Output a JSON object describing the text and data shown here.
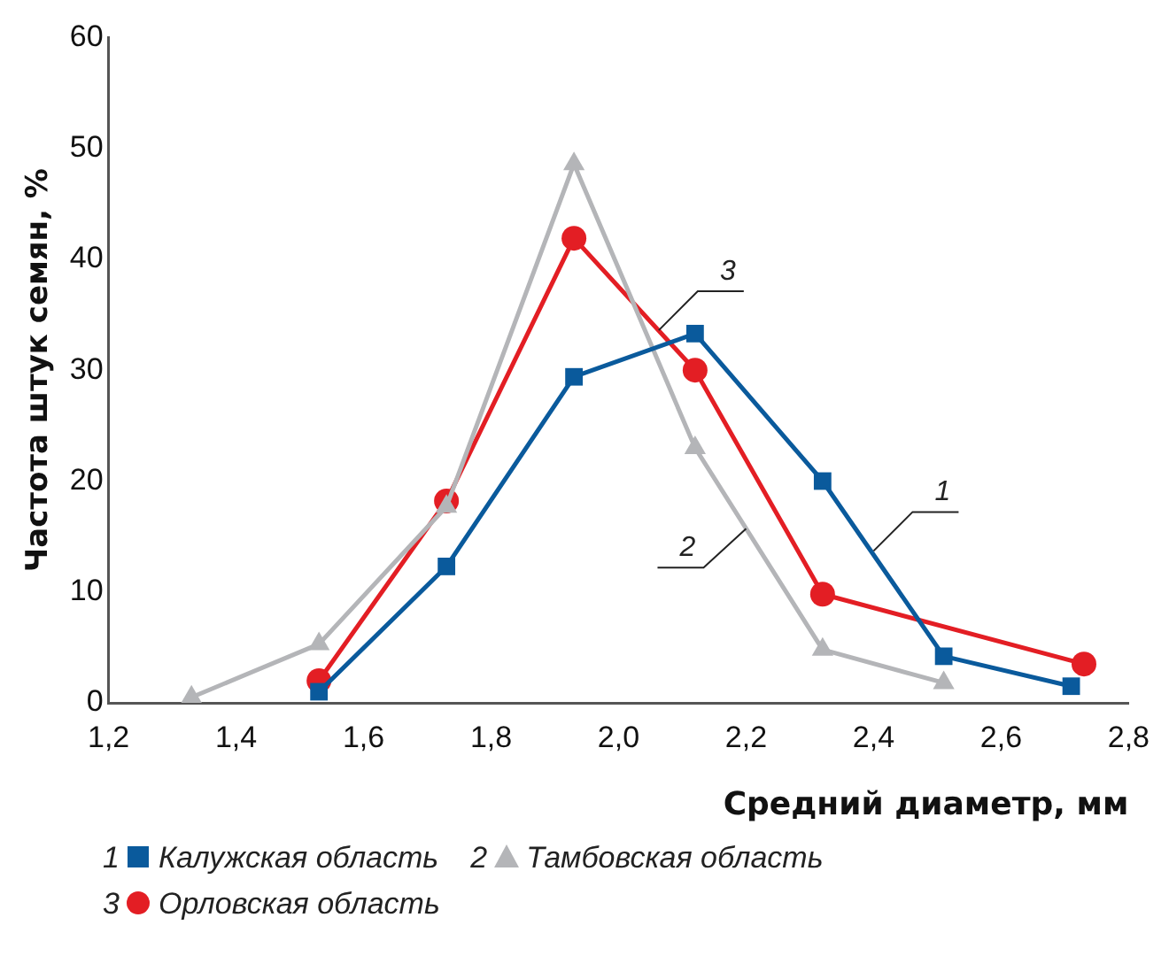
{
  "chart_data": {
    "type": "line",
    "xlabel": "Средний диаметр, мм",
    "ylabel": "Частота штук семян, %",
    "xlim": [
      1.2,
      2.8
    ],
    "xticks": [
      {
        "value": 1.2,
        "label": "1,2"
      },
      {
        "value": 1.4,
        "label": "1,4"
      },
      {
        "value": 1.6,
        "label": "1,6"
      },
      {
        "value": 1.8,
        "label": "1,8"
      },
      {
        "value": 2.0,
        "label": "2,0"
      },
      {
        "value": 2.2,
        "label": "2,2"
      },
      {
        "value": 2.4,
        "label": "2,4"
      },
      {
        "value": 2.6,
        "label": "2,6"
      },
      {
        "value": 2.8,
        "label": "2,8"
      }
    ],
    "ylim": [
      0,
      60
    ],
    "yticks": [
      0,
      10,
      20,
      30,
      40,
      50,
      60
    ],
    "grid": false,
    "legend": "bottom",
    "line_style": "solid",
    "series": [
      {
        "name": "Калужская область",
        "color": "#0a5a9c",
        "marker": "square",
        "x": [
          1.53,
          1.73,
          1.93,
          2.12,
          2.32,
          2.51,
          2.71
        ],
        "values": [
          1,
          12.3,
          29.4,
          33.3,
          20,
          4.2,
          1.5
        ]
      },
      {
        "name": "Тамбовская область",
        "color": "#b4b5b8",
        "marker": "triangle",
        "x": [
          1.33,
          1.53,
          1.73,
          1.93,
          2.12,
          2.32,
          2.51
        ],
        "values": [
          0.5,
          5.3,
          17.7,
          48.6,
          23,
          4.8,
          1.8
        ]
      },
      {
        "name": "Орловская область",
        "color": "#e31e24",
        "marker": "circle",
        "x": [
          1.53,
          1.73,
          1.93,
          2.12,
          2.32,
          2.73
        ],
        "values": [
          2,
          18.2,
          41.9,
          30,
          9.8,
          3.5
        ]
      }
    ],
    "annotations": [
      {
        "text": "1",
        "x": 2.4,
        "y": 13.7
      },
      {
        "text": "2",
        "x": 2.2,
        "y": 15.7
      },
      {
        "text": "3",
        "x": 2.063,
        "y": 33.6
      }
    ]
  }
}
